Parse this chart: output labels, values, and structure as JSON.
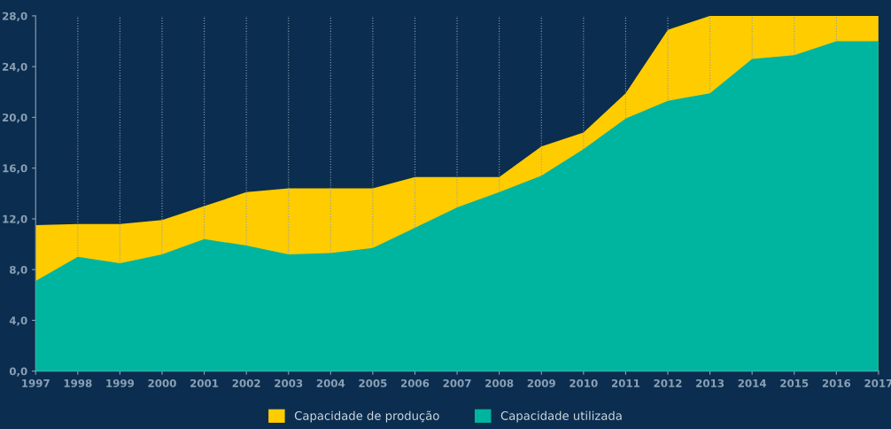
{
  "chart_data": {
    "type": "area",
    "categories": [
      "1997",
      "1998",
      "1999",
      "2000",
      "2001",
      "2002",
      "2003",
      "2004",
      "2005",
      "2006",
      "2007",
      "2008",
      "2009",
      "2010",
      "2011",
      "2012",
      "2013",
      "2014",
      "2015",
      "2016",
      "2017"
    ],
    "series": [
      {
        "name": "Capacidade de produção",
        "color": "#ffcc00",
        "values": [
          11.5,
          11.6,
          11.6,
          11.9,
          13.0,
          14.1,
          14.4,
          14.4,
          14.4,
          15.3,
          15.3,
          15.3,
          17.7,
          18.8,
          21.9,
          26.9,
          28.0,
          28.0,
          28.0,
          28.0,
          28.0
        ]
      },
      {
        "name": "Capacidade utilizada",
        "color": "#00b5a0",
        "values": [
          7.1,
          9.0,
          8.5,
          9.2,
          10.4,
          9.9,
          9.2,
          9.3,
          9.7,
          11.3,
          12.9,
          14.1,
          15.4,
          17.5,
          19.9,
          21.3,
          21.9,
          24.6,
          24.9,
          26.0,
          26.0
        ]
      }
    ],
    "ylim": [
      0,
      28
    ],
    "yticks": [
      {
        "value": 0,
        "label": "0,0"
      },
      {
        "value": 4,
        "label": "4,0"
      },
      {
        "value": 8,
        "label": "8,0"
      },
      {
        "value": 12,
        "label": "12,0"
      },
      {
        "value": 16,
        "label": "16,0"
      },
      {
        "value": 20,
        "label": "20,0"
      },
      {
        "value": 24,
        "label": "24,0"
      },
      {
        "value": 28,
        "label": "28,0"
      }
    ],
    "grid": "x",
    "legend": "bottom"
  }
}
